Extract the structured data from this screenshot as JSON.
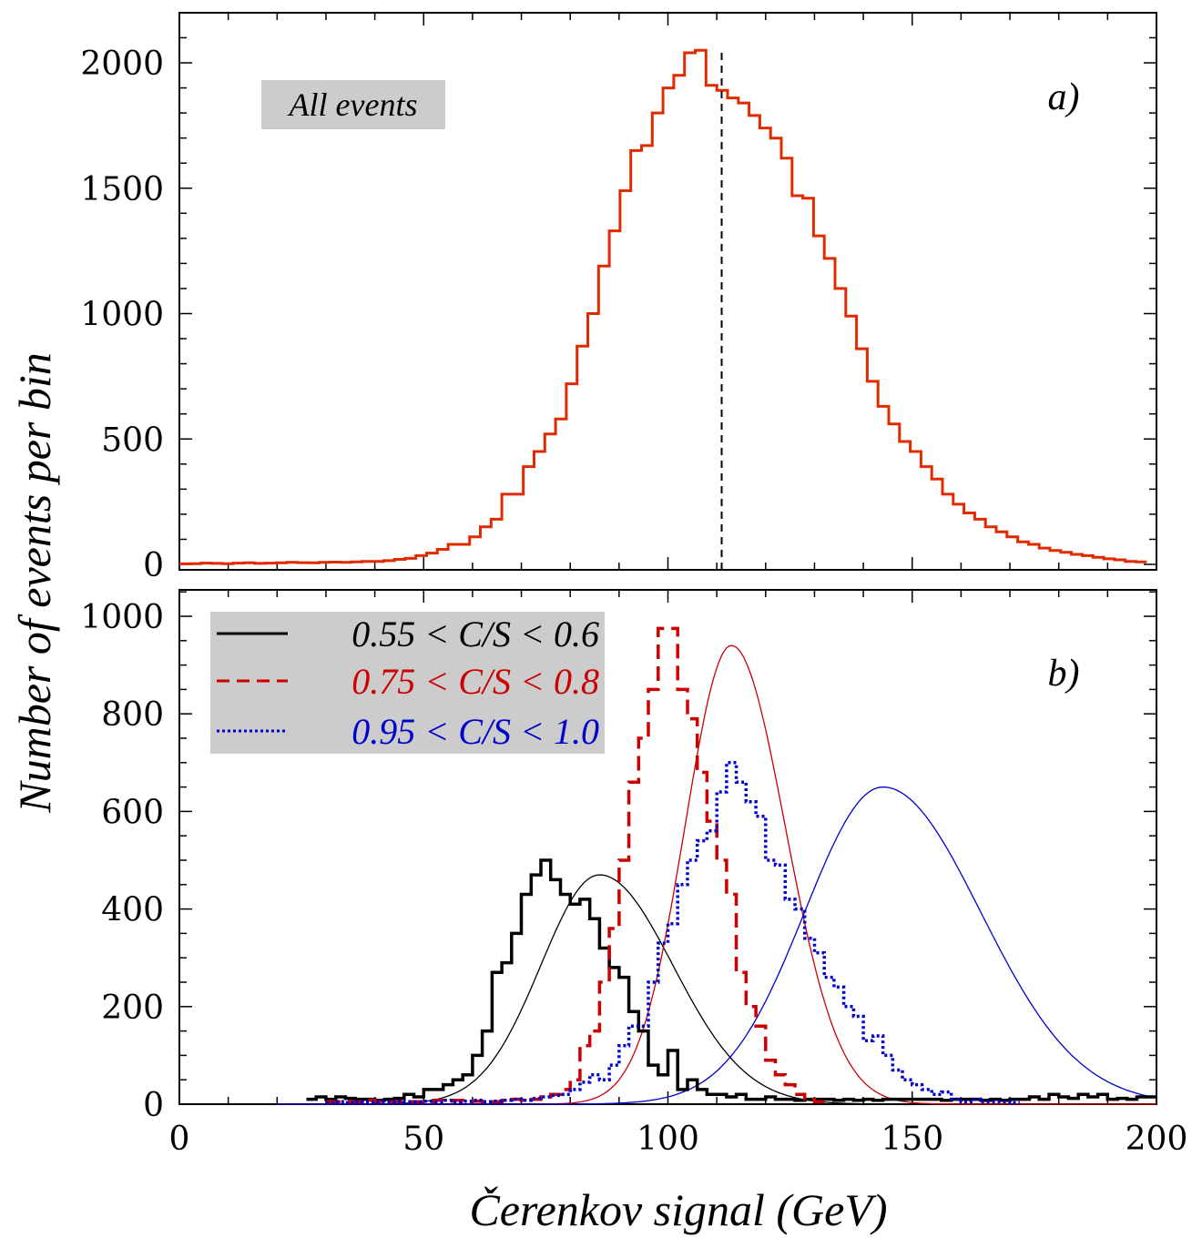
{
  "colors": {
    "black": "#000000",
    "red_hist": "#e02a00",
    "red": "#cc0000",
    "blue": "#0000cc",
    "box_fill": "#cccccc"
  },
  "chart_data": [
    {
      "panel": "a",
      "type": "line",
      "panel_tag": "a)",
      "annotation": "All events",
      "xlabel": "Čerenkov signal (GeV)",
      "ylabel": "Number of events per bin",
      "xlim": [
        0,
        200
      ],
      "ylim": [
        0,
        2200
      ],
      "yticks": [
        0,
        500,
        1000,
        1500,
        2000
      ],
      "bin_width": 2.2,
      "series": [
        {
          "style": "step",
          "color": "#e02a00",
          "x_start": 0,
          "values": [
            2,
            3,
            5,
            4,
            3,
            5,
            6,
            4,
            5,
            6,
            8,
            7,
            6,
            8,
            9,
            8,
            10,
            12,
            12,
            15,
            20,
            24,
            35,
            45,
            60,
            80,
            80,
            110,
            150,
            180,
            280,
            280,
            390,
            450,
            520,
            580,
            720,
            870,
            1000,
            1190,
            1330,
            1490,
            1650,
            1670,
            1800,
            1900,
            1950,
            2040,
            2050,
            1910,
            1890,
            1860,
            1840,
            1790,
            1740,
            1700,
            1620,
            1470,
            1460,
            1310,
            1220,
            1100,
            990,
            860,
            730,
            630,
            560,
            490,
            450,
            390,
            340,
            280,
            240,
            205,
            180,
            150,
            130,
            110,
            90,
            80,
            65,
            55,
            48,
            40,
            35,
            28,
            22,
            18,
            12,
            10
          ]
        }
      ],
      "marker_line_x": 111
    },
    {
      "panel": "b",
      "type": "line",
      "panel_tag": "b)",
      "xlabel": "Čerenkov signal (GeV)",
      "xlim": [
        0,
        200
      ],
      "ylim": [
        0,
        1050
      ],
      "yticks": [
        0,
        200,
        400,
        600,
        800,
        1000
      ],
      "xticks": [
        0,
        50,
        100,
        150,
        200
      ],
      "bin_width": 2.0,
      "series": [
        {
          "name": "0.55 < C/S < 0.6",
          "style": "step-solid",
          "color": "#000000",
          "x_start": 26,
          "values": [
            10,
            15,
            10,
            15,
            12,
            10,
            10,
            8,
            10,
            12,
            20,
            15,
            30,
            30,
            40,
            50,
            60,
            100,
            150,
            270,
            290,
            350,
            430,
            470,
            500,
            460,
            430,
            410,
            420,
            380,
            320,
            280,
            260,
            190,
            150,
            80,
            60,
            110,
            30,
            50,
            30,
            20,
            20,
            15,
            20,
            10,
            10,
            15,
            10,
            10,
            8,
            10,
            10,
            10,
            8,
            10,
            8,
            10,
            8,
            10,
            10,
            10,
            10,
            10,
            10,
            8,
            10,
            10,
            10,
            8,
            10,
            8,
            10,
            10,
            15,
            10,
            20,
            15,
            12,
            20,
            15,
            20,
            10,
            12,
            10,
            15,
            15
          ]
        },
        {
          "name": "0.75 < C/S < 0.8",
          "style": "step-dashed",
          "color": "#cc0000",
          "x_start": 30,
          "values": [
            5,
            5,
            5,
            5,
            8,
            5,
            5,
            6,
            5,
            5,
            5,
            8,
            6,
            8,
            5,
            6,
            5,
            5,
            8,
            10,
            8,
            10,
            15,
            20,
            30,
            50,
            120,
            150,
            250,
            360,
            500,
            660,
            750,
            850,
            975,
            975,
            850,
            790,
            680,
            580,
            500,
            430,
            270,
            200,
            160,
            90,
            60,
            40,
            20,
            10,
            5
          ]
        },
        {
          "name": "0.95 < C/S < 1.0",
          "style": "step-dotted",
          "color": "#0000cc",
          "x_start": 30,
          "values": [
            3,
            5,
            3,
            5,
            4,
            5,
            5,
            6,
            5,
            5,
            6,
            5,
            8,
            5,
            6,
            8,
            5,
            6,
            8,
            10,
            8,
            12,
            15,
            18,
            20,
            30,
            45,
            60,
            50,
            80,
            120,
            160,
            160,
            250,
            330,
            370,
            450,
            500,
            540,
            560,
            640,
            700,
            660,
            620,
            590,
            500,
            490,
            420,
            400,
            340,
            310,
            260,
            240,
            200,
            180,
            130,
            140,
            100,
            70,
            50,
            40,
            30,
            20,
            25,
            10,
            5,
            10,
            5,
            5,
            5,
            3
          ]
        }
      ],
      "fits": [
        {
          "color": "#000000",
          "amplitude": 470,
          "mean": 86,
          "sigma_left": 12,
          "sigma_right": 15
        },
        {
          "color": "#cc0000",
          "amplitude": 940,
          "mean": 113,
          "sigma_left": 9.5,
          "sigma_right": 11
        },
        {
          "color": "#0000cc",
          "amplitude": 650,
          "mean": 144,
          "sigma_left": 16,
          "sigma_right": 20
        }
      ],
      "legend_position": "top-left"
    }
  ],
  "axes": {
    "ylabel": "Number of events per bin",
    "xlabel": "Čerenkov signal (GeV)"
  }
}
